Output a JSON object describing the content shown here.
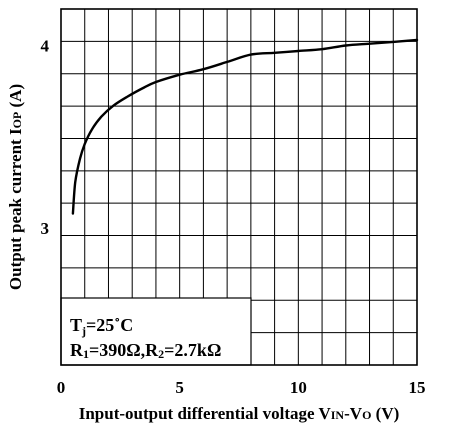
{
  "chart_data": {
    "type": "line",
    "xlabel": {
      "main": "Input-output differential voltage V",
      "sub1": "IN",
      "mid": "-V",
      "sub2": "O",
      "unit": " (V)"
    },
    "ylabel": {
      "main": "Output peak current I",
      "sub": "OP",
      "unit": " (A)"
    },
    "xlim": [
      0,
      15
    ],
    "ylim": [
      2.25,
      4.2
    ],
    "x_ticks": [
      0,
      5,
      10,
      15
    ],
    "y_ticks": [
      3,
      4
    ],
    "x_tick_labels": [
      "0",
      "5",
      "10",
      "15"
    ],
    "y_tick_labels": [
      "3",
      "4"
    ],
    "grid": true,
    "annotation": {
      "line1": {
        "t": "T",
        "sub": "j",
        "val": "=25",
        "deg": "˚",
        "unit": "C"
      },
      "line2": {
        "r1": "R",
        "sub1": "1",
        "v1": "=390Ω,",
        "r2": "R",
        "sub2": "2",
        "v2": "=2.7kΩ"
      }
    },
    "series": [
      {
        "x": [
          0.5,
          0.6,
          0.8,
          1.0,
          1.3,
          1.7,
          2.2,
          2.8,
          3.5,
          4.0,
          5.0,
          6.0,
          7.0,
          8.0,
          9.0,
          10.0,
          11.0,
          12.0,
          13.0,
          14.0,
          15.0
        ],
        "y": [
          3.08,
          3.25,
          3.38,
          3.46,
          3.54,
          3.61,
          3.67,
          3.72,
          3.77,
          3.8,
          3.84,
          3.87,
          3.91,
          3.95,
          3.96,
          3.97,
          3.98,
          4.0,
          4.01,
          4.02,
          4.03
        ]
      }
    ]
  }
}
